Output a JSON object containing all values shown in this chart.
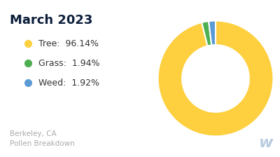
{
  "title": "March 2023",
  "title_color": "#0d1f3c",
  "title_fontsize": 13,
  "title_fontweight": "bold",
  "labels": [
    "Tree",
    "Grass",
    "Weed"
  ],
  "values": [
    96.14,
    1.94,
    1.92
  ],
  "percentages": [
    "96.14%",
    "1.94%",
    "1.92%"
  ],
  "colors": [
    "#FECF3E",
    "#4CAF50",
    "#5B9BD5"
  ],
  "dot_size": 7,
  "subtitle_line1": "Berkeley, CA",
  "subtitle_line2": "Pollen Breakdown",
  "subtitle_color": "#aaaaaa",
  "subtitle_fontsize": 7.5,
  "background_color": "#ffffff",
  "donut_width": 0.42,
  "legend_fontsize": 9,
  "legend_label_color": "#333333",
  "watermark_color": "#b8cce0",
  "watermark_text": "w",
  "watermark_fontsize": 16
}
